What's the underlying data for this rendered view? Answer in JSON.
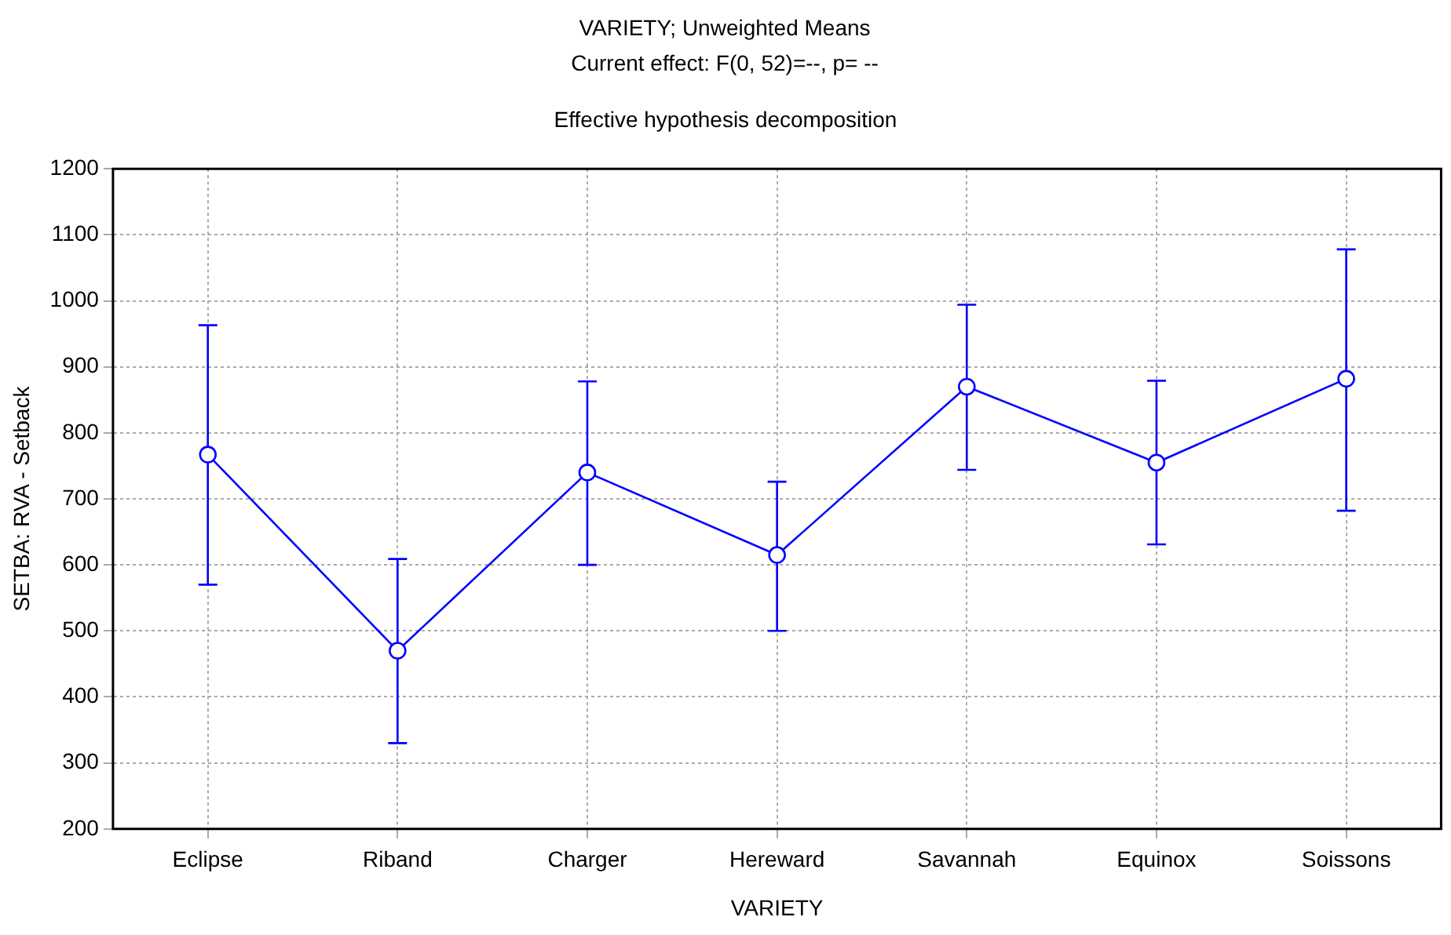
{
  "chart_data": {
    "type": "line",
    "title": "VARIETY; Unweighted Means",
    "subtitle": "Current effect: F(0, 52)=--, p= --",
    "annotations": [
      "Effective hypothesis decomposition"
    ],
    "xlabel": "VARIETY",
    "ylabel": "SETBA: RVA - Setback",
    "categories": [
      "Eclipse",
      "Riband",
      "Charger",
      "Hereward",
      "Savannah",
      "Equinox",
      "Soissons"
    ],
    "series": [
      {
        "color": "#0000ff",
        "values": [
          767,
          470,
          740,
          615,
          870,
          755,
          882
        ],
        "errors": [
          [
            570,
            963
          ],
          [
            330,
            609
          ],
          [
            600,
            878
          ],
          [
            500,
            726
          ],
          [
            744,
            994
          ],
          [
            631,
            879
          ],
          [
            682,
            1078
          ]
        ]
      }
    ],
    "ylim": [
      200,
      1200
    ],
    "yticks": [
      200,
      300,
      400,
      500,
      600,
      700,
      800,
      900,
      1000,
      1100,
      1200
    ],
    "grid": true,
    "legend": false,
    "marker": "circle",
    "line_style": "solid"
  }
}
